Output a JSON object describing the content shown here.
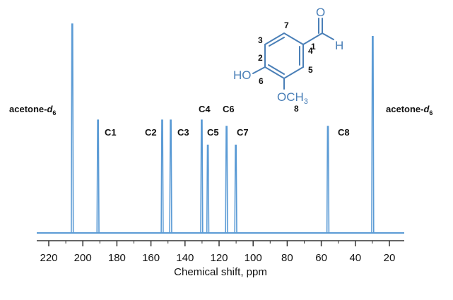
{
  "colors": {
    "spectrum": "#5b9bd5",
    "axis": "#333333",
    "text": "#111111",
    "molecule": "#4a7fb7"
  },
  "chart_data": {
    "type": "line",
    "xlabel": "Chemical shift, ppm",
    "ylabel": "",
    "xlim": [
      220,
      20
    ],
    "x_reversed": true,
    "grid": false,
    "xticks": [
      220,
      200,
      180,
      160,
      140,
      120,
      100,
      80,
      60,
      40,
      20
    ],
    "peaks": [
      {
        "label": "acetone-d6",
        "ppm": 206.2,
        "intensity": 1.0
      },
      {
        "label": "C1",
        "ppm": 191.1,
        "intensity": 0.54
      },
      {
        "label": "C2",
        "ppm": 153.4,
        "intensity": 0.54
      },
      {
        "label": "C3",
        "ppm": 148.4,
        "intensity": 0.54
      },
      {
        "label": "C4",
        "ppm": 130.2,
        "intensity": 0.54
      },
      {
        "label": "C5",
        "ppm": 126.6,
        "intensity": 0.42
      },
      {
        "label": "C6",
        "ppm": 115.6,
        "intensity": 0.51
      },
      {
        "label": "C7",
        "ppm": 110.2,
        "intensity": 0.42
      },
      {
        "label": "C8",
        "ppm": 56.1,
        "intensity": 0.51
      },
      {
        "label": "acetone-d6",
        "ppm": 29.8,
        "intensity": 0.94
      }
    ]
  },
  "labels": {
    "solvent_left": "acetone-",
    "solvent_right": "acetone-",
    "solvent_italic": "d",
    "solvent_sub": "6",
    "peaks": {
      "C1": "C1",
      "C2": "C2",
      "C3": "C3",
      "C4": "C4",
      "C5": "C5",
      "C6": "C6",
      "C7": "C7",
      "C8": "C8"
    }
  },
  "molecule": {
    "aldehyde_o": "O",
    "aldehyde_h": "H",
    "hydroxyl": "HO",
    "methoxy": "OCH",
    "methoxy_sub": "3",
    "numbers": {
      "n1": "1",
      "n2": "2",
      "n3": "3",
      "n4": "4",
      "n5": "5",
      "n6": "6",
      "n7": "7",
      "n8": "8"
    }
  }
}
